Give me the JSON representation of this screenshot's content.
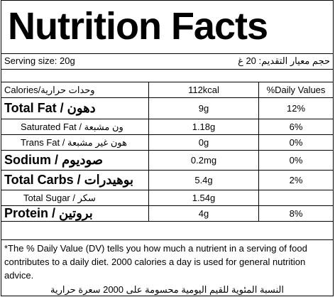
{
  "title": "Nutrition Facts",
  "serving": {
    "en": "Serving size: 20g",
    "ar": "حجم معيار التقديم: 20 غ"
  },
  "header": {
    "name": "Calories/وحدات حرارية",
    "amount": "112kcal",
    "dv": "%Daily Values"
  },
  "rows": [
    {
      "name": "Total Fat / دهون",
      "amount": "9g",
      "dv": "12%"
    },
    {
      "name": "Saturated Fat / ون مشبعة",
      "amount": "1.18g",
      "dv": "6%"
    },
    {
      "name": "Trans Fat / هون غير مشبعة",
      "amount": "0g",
      "dv": "0%"
    },
    {
      "name": "Sodium / صوديوم",
      "amount": "0.2mg",
      "dv": "0%"
    },
    {
      "name": "Total Carbs / بوهيدرات",
      "amount": "5.4g",
      "dv": "2%"
    },
    {
      "name": "Total Sugar / سكر",
      "amount": "1.54g",
      "dv": ""
    },
    {
      "name": "Protein / بروتين",
      "amount": "4g",
      "dv": "8%"
    }
  ],
  "footnote": {
    "en": "*The % Daily Value (DV) tells you how much a nutrient in a serving of food contributes to a daily diet. 2000 calories a day is used for general nutrition advice.",
    "ar": "النسبة المئوية للقيم اليومية محسومة على 2000 سعرة حرارية"
  }
}
